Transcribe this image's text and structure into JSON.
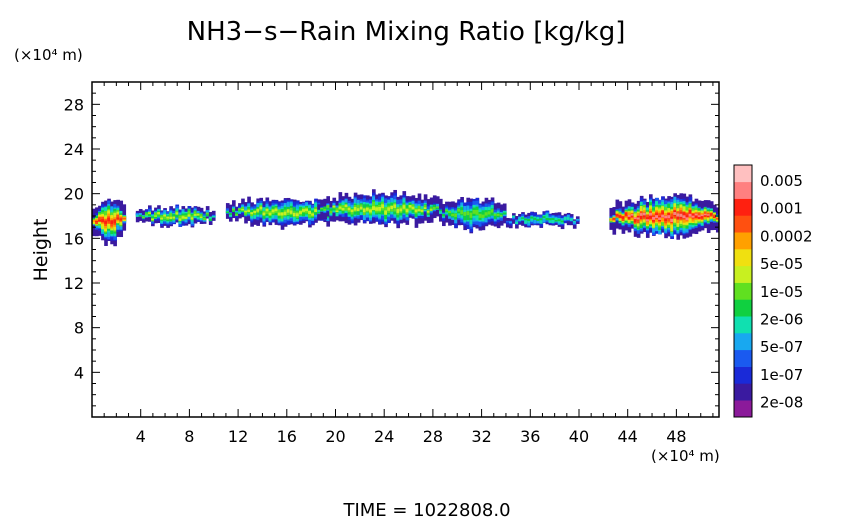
{
  "chart_data": {
    "type": "heatmap",
    "title": "NH3−s−Rain Mixing Ratio [kg/kg]",
    "ylabel": "Height",
    "y_unit_label": "(×10⁴ m)",
    "x_unit_label": "(×10⁴ m)",
    "footer": "TIME  =  1022808.0",
    "xlim": [
      0,
      51.5
    ],
    "ylim": [
      0,
      30
    ],
    "x_ticks": [
      "4",
      "8",
      "12",
      "16",
      "20",
      "24",
      "28",
      "32",
      "36",
      "40",
      "44",
      "48"
    ],
    "y_ticks": [
      "4",
      "8",
      "12",
      "16",
      "20",
      "24",
      "28"
    ],
    "colorbar": {
      "labels": [
        "0.005",
        "0.001",
        "0.0002",
        "5e-05",
        "1e-05",
        "2e-06",
        "5e-07",
        "1e-07",
        "2e-08"
      ],
      "colors": [
        "#8b1a9a",
        "#3a1aa0",
        "#1a2ad8",
        "#1a5af0",
        "#18a8f0",
        "#10e0b0",
        "#10d040",
        "#60e020",
        "#c8f020",
        "#f0e010",
        "#ffa000",
        "#ff5010",
        "#ff2010",
        "#ff8080",
        "#ffc0c0"
      ]
    },
    "features": [
      {
        "x0": 0.0,
        "x1": 2.6,
        "yc": 17.6,
        "h": 3.6,
        "peak": 11
      },
      {
        "x0": 3.6,
        "x1": 10.0,
        "yc": 18.0,
        "h": 1.6,
        "peak": 7
      },
      {
        "x0": 11.0,
        "x1": 21.5,
        "yc": 18.4,
        "h": 2.2,
        "peak": 7
      },
      {
        "x0": 18.5,
        "x1": 28.5,
        "yc": 18.6,
        "h": 2.6,
        "peak": 7
      },
      {
        "x0": 28.5,
        "x1": 34.0,
        "yc": 18.2,
        "h": 2.6,
        "peak": 6
      },
      {
        "x0": 34.0,
        "x1": 40.0,
        "yc": 17.6,
        "h": 1.2,
        "peak": 5
      },
      {
        "x0": 42.5,
        "x1": 51.5,
        "yc": 17.9,
        "h": 3.4,
        "peak": 12
      }
    ]
  }
}
